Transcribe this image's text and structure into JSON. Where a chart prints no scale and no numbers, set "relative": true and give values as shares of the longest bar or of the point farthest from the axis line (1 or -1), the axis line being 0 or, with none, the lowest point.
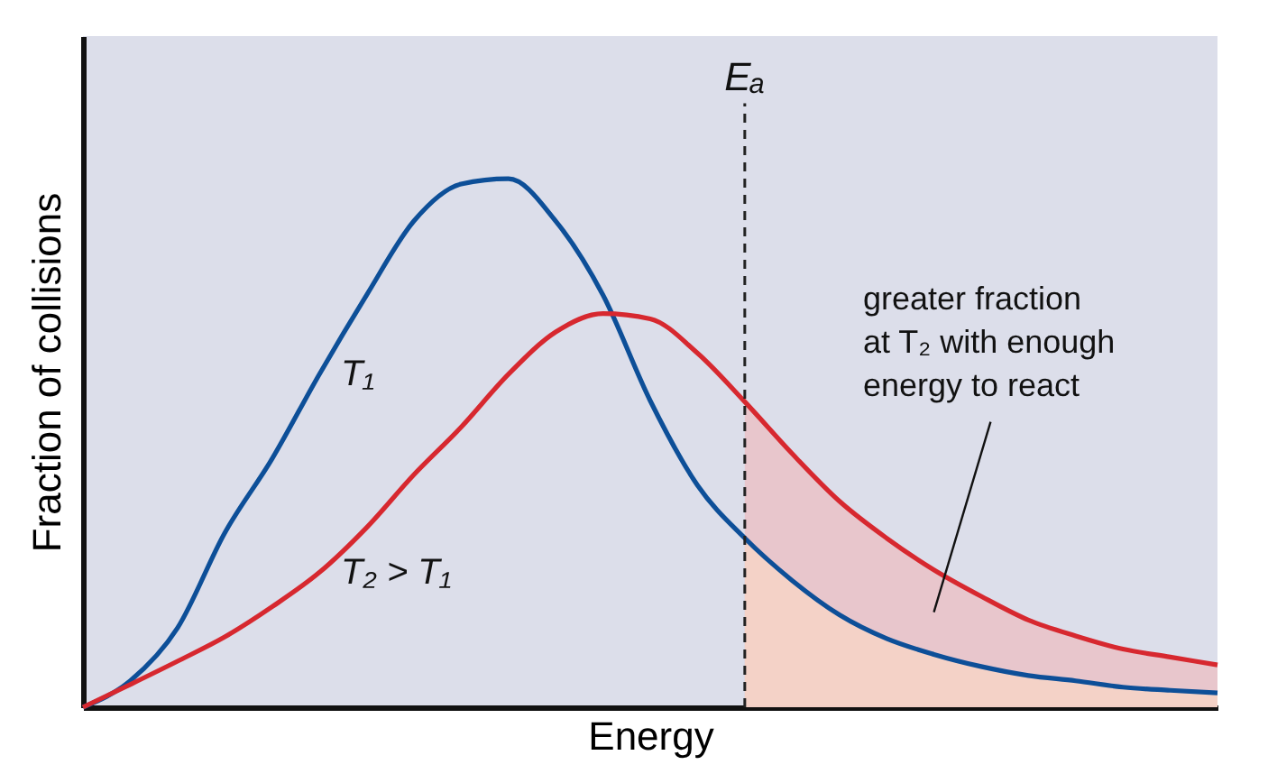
{
  "chart_data": {
    "type": "line",
    "relative": true,
    "xlabel": "Energy",
    "ylabel": "Fraction of collisions",
    "marker": "none",
    "line_style": "solid",
    "categories": [
      null,
      null,
      null,
      null,
      null,
      null,
      null,
      null,
      null,
      null,
      null,
      null,
      null,
      null,
      null,
      null,
      null,
      null,
      null,
      null,
      null,
      null,
      null,
      null,
      null
    ],
    "series": [
      {
        "name": "T₁",
        "color": "#0d4f98",
        "values": [
          0,
          0.05,
          0.15,
          0.33,
          0.47,
          0.63,
          0.78,
          0.92,
          0.99,
          1,
          0.92,
          0.78,
          0.58,
          0.42,
          0.32,
          0.24,
          0.175,
          0.13,
          0.1,
          0.077,
          0.06,
          0.05,
          0.038,
          0.032,
          0.027
        ]
      },
      {
        "name": "T₂ > T₁",
        "color": "#d7282f",
        "values": [
          0,
          0.043,
          0.087,
          0.133,
          0.19,
          0.255,
          0.34,
          0.44,
          0.53,
          0.63,
          0.71,
          0.745,
          0.735,
          0.67,
          0.578,
          0.48,
          0.39,
          0.32,
          0.26,
          0.21,
          0.165,
          0.135,
          0.11,
          0.095,
          0.08
        ]
      },
      {
        "type": "area",
        "color": "#e9c3c9",
        "values": [
          null,
          null,
          null,
          null,
          null,
          null,
          null,
          null,
          null,
          null,
          null,
          null,
          null,
          null,
          0.578,
          0.48,
          0.39,
          0.32,
          0.26,
          0.21,
          0.165,
          0.135,
          0.11,
          0.095,
          0.08
        ]
      },
      {
        "type": "area",
        "color": "#f5d3c6",
        "values": [
          null,
          null,
          null,
          null,
          null,
          null,
          null,
          null,
          null,
          null,
          null,
          null,
          null,
          null,
          0.32,
          0.24,
          0.175,
          0.13,
          0.1,
          0.077,
          0.06,
          0.05,
          0.038,
          0.032,
          0.027
        ]
      }
    ],
    "annotations": [
      "Eₐ",
      "greater fraction at T₂ with enough energy to react"
    ]
  }
}
